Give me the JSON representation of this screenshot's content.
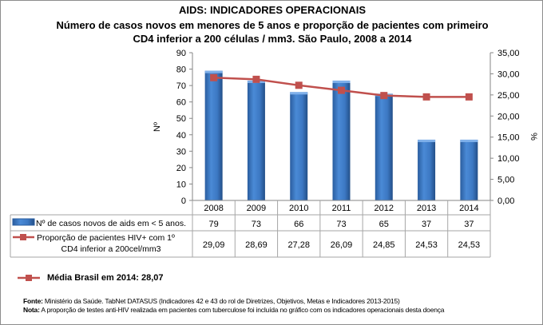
{
  "title": "AIDS: INDICADORES OPERACIONAIS",
  "subtitle_line1": "Número de casos novos em menores de 5 anos e proporção de pacientes com primeiro",
  "subtitle_line2": "CD4 inferior a 200 células / mm3. São Paulo, 2008 a 2014",
  "chart_data": {
    "type": "bar+line",
    "categories": [
      "2008",
      "2009",
      "2010",
      "2011",
      "2012",
      "2013",
      "2014"
    ],
    "series": [
      {
        "name": "Nº de casos novos de aids em < 5 anos.",
        "type": "bar",
        "axis": "left",
        "color": "#3c78c3",
        "values": [
          79,
          73,
          66,
          73,
          65,
          37,
          37
        ],
        "labels": [
          "79",
          "73",
          "66",
          "73",
          "65",
          "37",
          "37"
        ]
      },
      {
        "name_line1": "Proporção de pacientes HIV+ com 1º",
        "name_line2": "CD4 inferior a 200cel/mm3",
        "type": "line",
        "axis": "right",
        "color": "#c0504d",
        "values": [
          29.09,
          28.69,
          27.28,
          26.09,
          24.85,
          24.53,
          24.53
        ],
        "labels": [
          "29,09",
          "28,69",
          "27,28",
          "26,09",
          "24,85",
          "24,53",
          "24,53"
        ]
      }
    ],
    "y_left": {
      "label": "Nº",
      "range": [
        0,
        90
      ],
      "ticks": [
        "0",
        "10",
        "20",
        "30",
        "40",
        "50",
        "60",
        "70",
        "80",
        "90"
      ]
    },
    "y_right": {
      "label": "%",
      "range": [
        0,
        35
      ],
      "ticks": [
        "0,00",
        "5,00",
        "10,00",
        "15,00",
        "20,00",
        "25,00",
        "30,00",
        "35,00"
      ]
    },
    "grid": false,
    "legend": "data-table"
  },
  "brazil_average": {
    "label": "Média Brasil em 2014: 28,07",
    "color": "#c0504d"
  },
  "footer": {
    "source_label": "Fonte:",
    "source_text": " Ministério da Saúde. TabNet DATASUS (Indicadores 42 e 43 do rol de Diretrizes, Objetivos, Metas e Indicadores 2013-2015)",
    "note_label": "Nota:",
    "note_text": " A proporção de testes anti-HIV realizada em pacientes com tuberculose foi incluída no gráfico com os indicadores operacionais desta doença"
  }
}
